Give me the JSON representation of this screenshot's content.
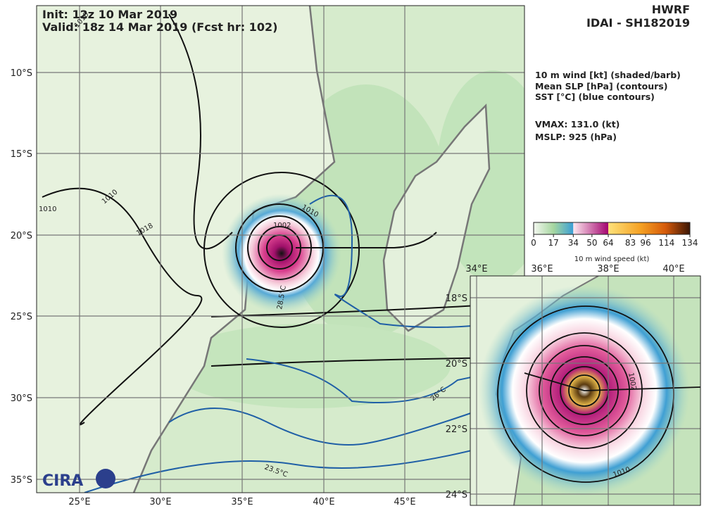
{
  "header": {
    "init": "Init:  12z 10 Mar 2019",
    "valid": "Valid: 18z 14 Mar 2019 (Fcst hr: 102)",
    "model": "HWRF",
    "storm": "IDAI - SH182019"
  },
  "legend": {
    "lines": [
      "10 m wind [kt] (shaded/barb)",
      "Mean SLP [hPa] (contours)",
      "SST [°C] (blue contours)"
    ],
    "vmax": "VMAX: 131.0 (kt)",
    "mslp": "MSLP:  925 (hPa)"
  },
  "colorbar": {
    "ticks": [
      0,
      17,
      34,
      50,
      64,
      83,
      96,
      114,
      134
    ],
    "label": "10 m wind speed (kt)"
  },
  "main_map": {
    "lat_labels": [
      "10°S",
      "15°S",
      "20°S",
      "25°S",
      "30°S",
      "35°S"
    ],
    "lon_labels": [
      "25°E",
      "30°E",
      "35°E",
      "40°E",
      "45°E"
    ],
    "contour_labels": [
      "1010",
      "1010",
      "1018",
      "1010",
      "1002",
      "1010"
    ],
    "sst_labels": [
      "28.5°C",
      "26°C",
      "23.5°C"
    ],
    "logo": "CIRA"
  },
  "inset": {
    "lon_labels": [
      "34°E",
      "36°E",
      "38°E",
      "40°E"
    ],
    "lat_labels": [
      "18°S",
      "20°S",
      "22°S",
      "24°S"
    ],
    "contour_labels": [
      "1002",
      "1010"
    ]
  }
}
